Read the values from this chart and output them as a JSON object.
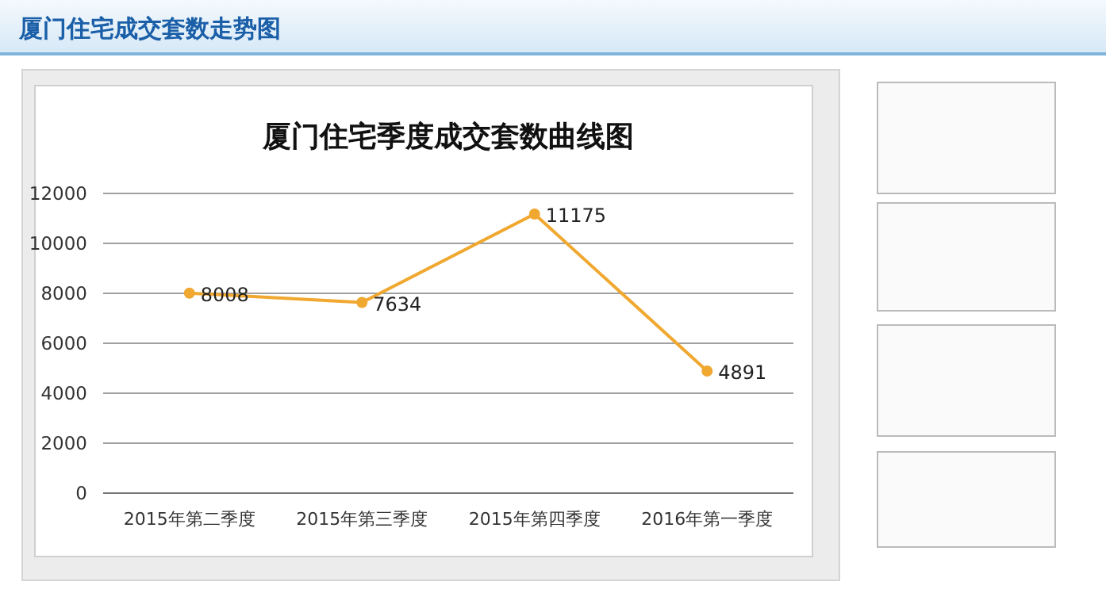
{
  "chart_data": {
    "type": "line",
    "title": "厦门住宅成交套数走势图",
    "subtitle": "厦门住宅季度成交套数曲线图",
    "categories": [
      "2015年第二季度",
      "2015年第三季度",
      "2015年第四季度",
      "2016年第一季度"
    ],
    "series": [
      {
        "color": "#f0a830",
        "values": [
          8008,
          7634,
          11175,
          4891
        ]
      }
    ],
    "ylim": [
      0,
      12000
    ],
    "yticks": [
      0,
      2000,
      4000,
      6000,
      8000,
      10000,
      12000
    ],
    "grid": "y",
    "marker": "circle",
    "line_style": "solid",
    "data_labels": true
  }
}
